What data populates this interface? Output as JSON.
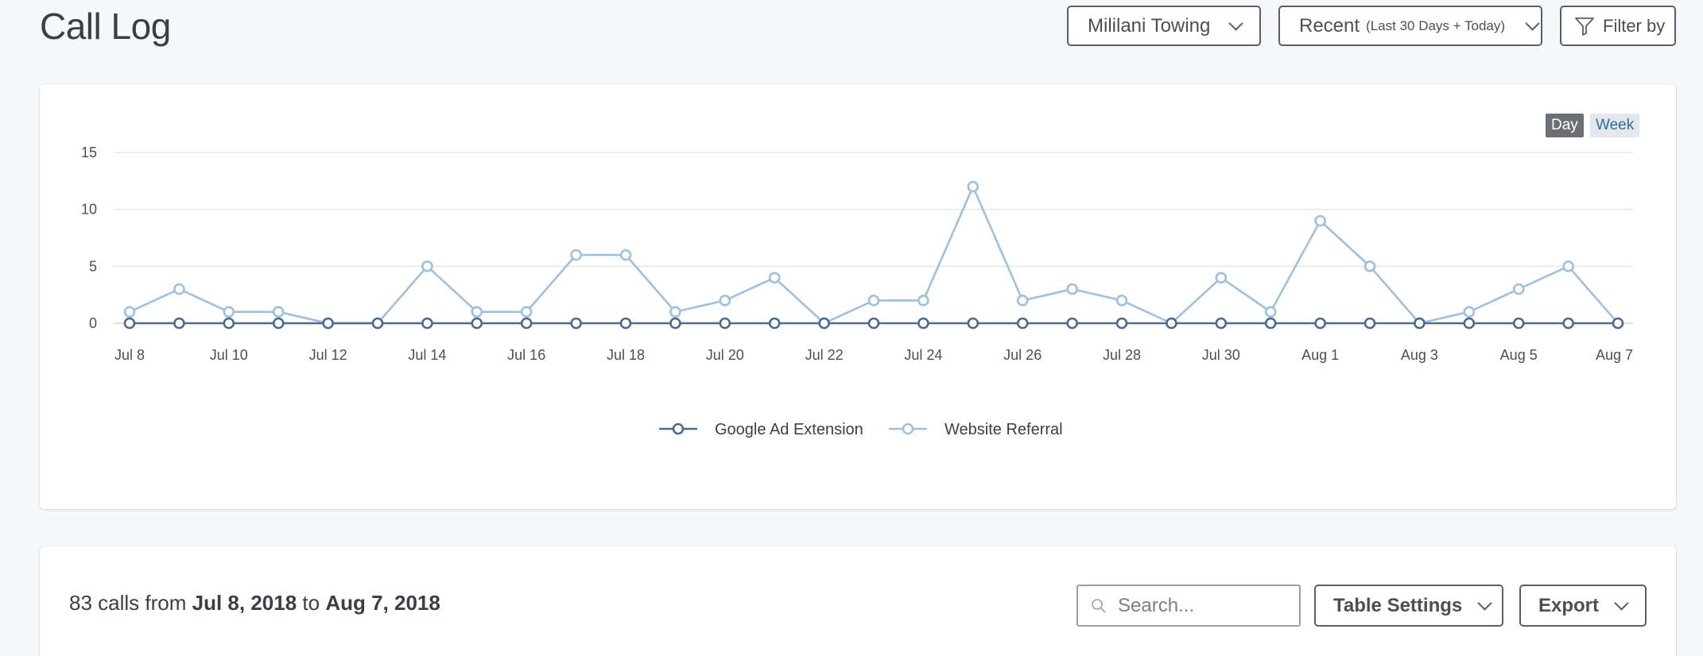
{
  "page": {
    "title": "Call Log"
  },
  "header": {
    "company_label": "Mililani Towing",
    "range_label": "Recent",
    "range_sub": "(Last 30 Days + Today)",
    "filter_label": "Filter by"
  },
  "chart_controls": {
    "day": "Day",
    "week": "Week",
    "active": "Day"
  },
  "chart_data": {
    "type": "line",
    "x": [
      "Jul 8",
      "Jul 9",
      "Jul 10",
      "Jul 11",
      "Jul 12",
      "Jul 13",
      "Jul 14",
      "Jul 15",
      "Jul 16",
      "Jul 17",
      "Jul 18",
      "Jul 19",
      "Jul 20",
      "Jul 21",
      "Jul 22",
      "Jul 23",
      "Jul 24",
      "Jul 25",
      "Jul 26",
      "Jul 27",
      "Jul 28",
      "Jul 29",
      "Jul 30",
      "Jul 31",
      "Aug 1",
      "Aug 2",
      "Aug 3",
      "Aug 4",
      "Aug 5",
      "Aug 6",
      "Aug 7"
    ],
    "x_tick_labels": [
      "Jul 8",
      "Jul 10",
      "Jul 12",
      "Jul 14",
      "Jul 16",
      "Jul 18",
      "Jul 20",
      "Jul 22",
      "Jul 24",
      "Jul 26",
      "Jul 28",
      "Jul 30",
      "Aug 1",
      "Aug 3",
      "Aug 5",
      "Aug 7"
    ],
    "y_ticks": [
      0,
      5,
      10,
      15
    ],
    "ylim": [
      0,
      15
    ],
    "grid": true,
    "legend_position": "bottom-center",
    "series": [
      {
        "name": "Google Ad Extension",
        "color": "#4a6a8f",
        "values": [
          0,
          0,
          0,
          0,
          0,
          0,
          0,
          0,
          0,
          0,
          0,
          0,
          0,
          0,
          0,
          0,
          0,
          0,
          0,
          0,
          0,
          0,
          0,
          0,
          0,
          0,
          0,
          0,
          0,
          0,
          0
        ]
      },
      {
        "name": "Website Referral",
        "color": "#9cc0df",
        "values": [
          1,
          3,
          1,
          1,
          0,
          0,
          5,
          1,
          1,
          6,
          6,
          1,
          2,
          4,
          0,
          2,
          2,
          12,
          2,
          3,
          2,
          0,
          4,
          1,
          9,
          5,
          0,
          1,
          3,
          5,
          0
        ]
      }
    ]
  },
  "table_header": {
    "count": "83",
    "calls_from": "calls from",
    "start_date": "Jul 8, 2018",
    "to": "to",
    "end_date": "Aug 7, 2018",
    "search_placeholder": "Search...",
    "table_settings_label": "Table Settings",
    "export_label": "Export"
  }
}
